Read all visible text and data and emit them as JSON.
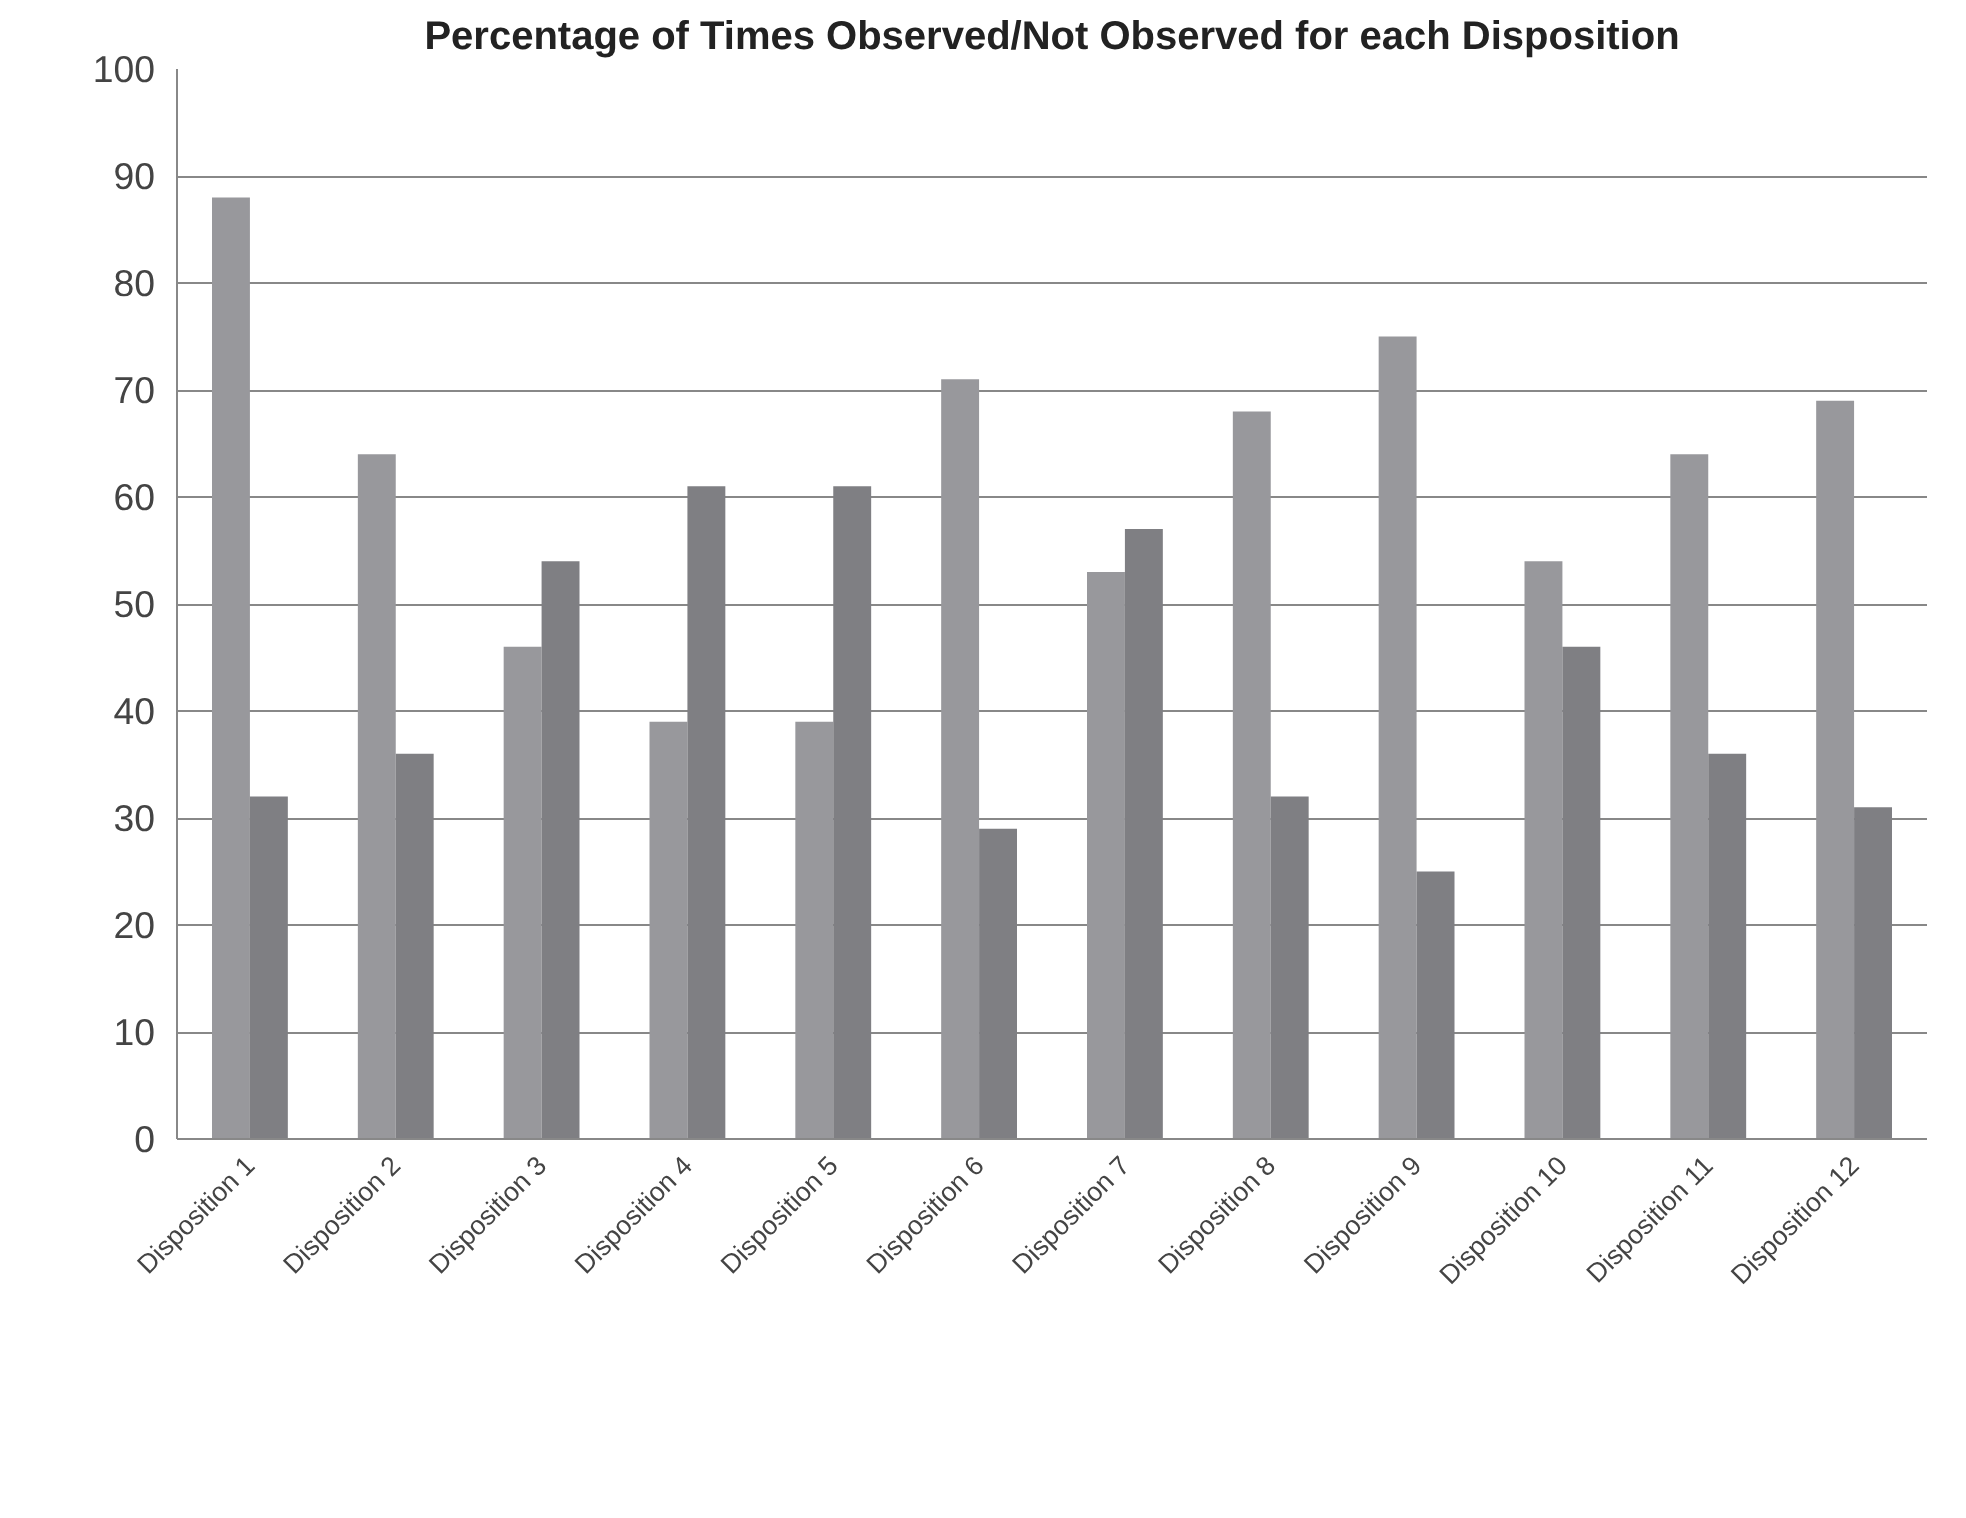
{
  "chart_data": {
    "type": "bar",
    "title": "Percentage of Times Observed/Not Observed for each Disposition",
    "categories": [
      "Disposition 1",
      "Disposition 2",
      "Disposition 3",
      "Disposition 4",
      "Disposition 5",
      "Disposition 6",
      "Disposition 7",
      "Disposition 8",
      "Disposition 9",
      "Disposition 10",
      "Disposition 11",
      "Disposition 12"
    ],
    "series": [
      {
        "color": "#98989c",
        "values": [
          88,
          64,
          46,
          39,
          39,
          71,
          53,
          68,
          75,
          54,
          64,
          69
        ]
      },
      {
        "color": "#7f7f83",
        "values": [
          32,
          36,
          54,
          61,
          61,
          29,
          57,
          32,
          25,
          46,
          36,
          31
        ]
      }
    ],
    "ylim": [
      0,
      100
    ],
    "yticks": [
      0,
      10,
      20,
      30,
      40,
      50,
      60,
      70,
      80,
      90,
      100
    ],
    "grid": "y"
  }
}
